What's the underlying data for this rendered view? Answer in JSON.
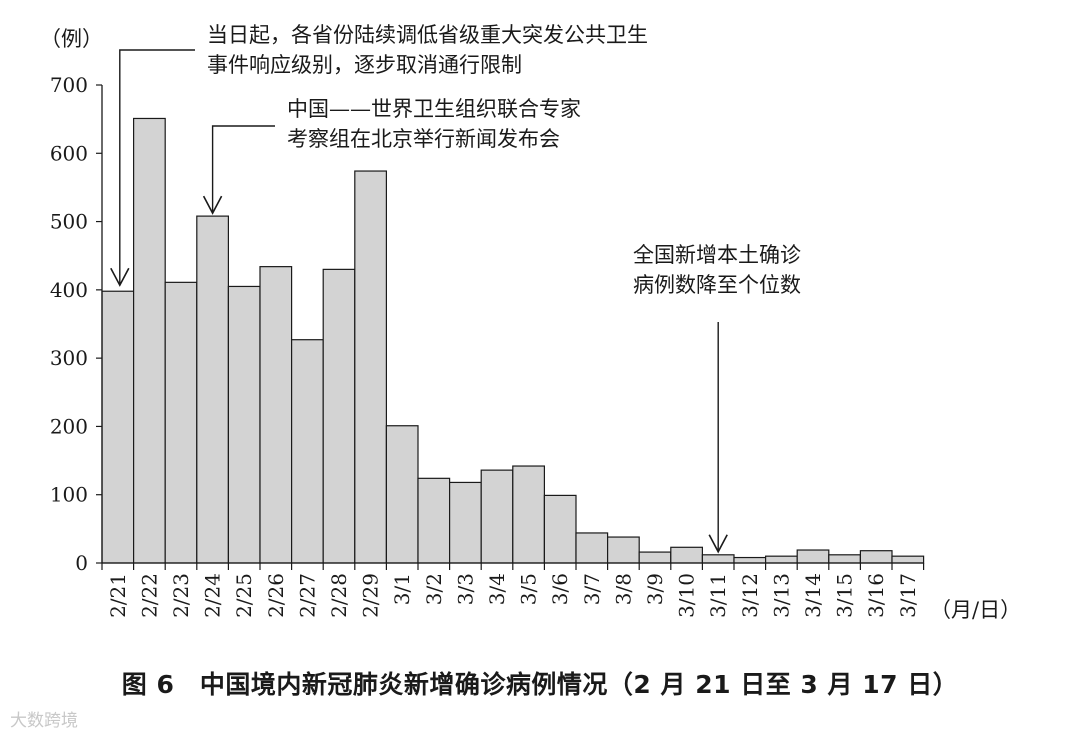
{
  "caption": "图 6　中国境内新冠肺炎新增确诊病例情况（2 月 21 日至 3 月 17 日）",
  "watermark": "大数跨境",
  "chart_data": {
    "type": "bar",
    "ylabel": "（例）",
    "xlabel": "（月/日）",
    "ylim": [
      0,
      700
    ],
    "yticks": [
      0,
      100,
      200,
      300,
      400,
      500,
      600,
      700
    ],
    "categories": [
      "2/21",
      "2/22",
      "2/23",
      "2/24",
      "2/25",
      "2/26",
      "2/27",
      "2/28",
      "2/29",
      "3/1",
      "3/2",
      "3/3",
      "3/4",
      "3/5",
      "3/6",
      "3/7",
      "3/8",
      "3/9",
      "3/10",
      "3/11",
      "3/12",
      "3/13",
      "3/14",
      "3/15",
      "3/16",
      "3/17"
    ],
    "values": [
      398,
      651,
      411,
      508,
      405,
      434,
      327,
      430,
      574,
      201,
      124,
      118,
      136,
      142,
      99,
      44,
      38,
      16,
      23,
      12,
      8,
      10,
      19,
      12,
      18,
      10
    ],
    "bar_color": "#d3d3d3",
    "annotations": [
      {
        "lines": [
          "当日起，各省份陆续调低省级重大突发公共卫生",
          "事件响应级别，逐步取消通行限制"
        ],
        "category": "2/21"
      },
      {
        "lines": [
          "中国——世界卫生组织联合专家",
          "考察组在北京举行新闻发布会"
        ],
        "category": "2/24"
      },
      {
        "lines": [
          "全国新增本土确诊",
          "病例数降至个位数"
        ],
        "category": "3/11"
      }
    ]
  }
}
